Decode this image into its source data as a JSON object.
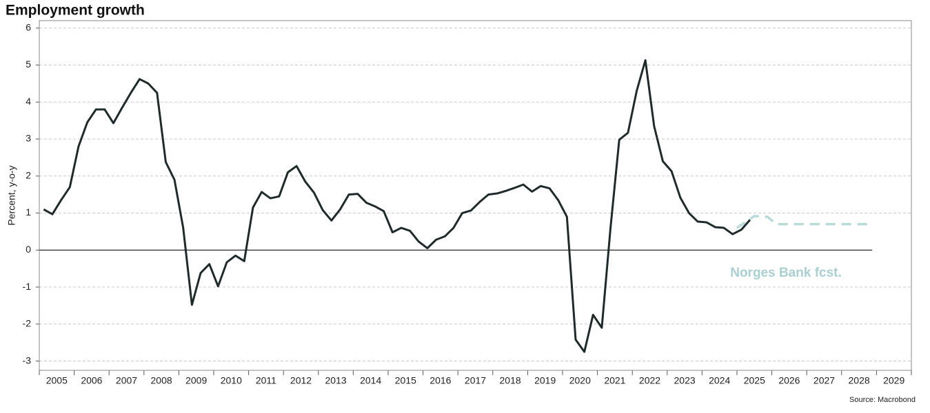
{
  "chart_data": {
    "type": "line",
    "title": "Employment growth",
    "ylabel": "Percent, y-o-y",
    "annotation": "Norges Bank fcst.",
    "source": "Source: Macrobond",
    "xlim": [
      2005,
      2030
    ],
    "xticks": [
      2005,
      2006,
      2007,
      2008,
      2009,
      2010,
      2011,
      2012,
      2013,
      2014,
      2015,
      2016,
      2017,
      2018,
      2019,
      2020,
      2021,
      2022,
      2023,
      2024,
      2025,
      2026,
      2027,
      2028,
      2029
    ],
    "ylim": [
      -3.25,
      6.2
    ],
    "yticks": [
      -3,
      -2,
      -1,
      0,
      1,
      2,
      3,
      4,
      5,
      6
    ],
    "grid": true,
    "series": [
      {
        "color": "#1f2a2a",
        "x": [
          2005.125,
          2005.375,
          2005.625,
          2005.875,
          2006.125,
          2006.375,
          2006.625,
          2006.875,
          2007.125,
          2007.375,
          2007.625,
          2007.875,
          2008.125,
          2008.375,
          2008.625,
          2008.875,
          2009.125,
          2009.375,
          2009.625,
          2009.875,
          2010.125,
          2010.375,
          2010.625,
          2010.875,
          2011.125,
          2011.375,
          2011.625,
          2011.875,
          2012.125,
          2012.375,
          2012.625,
          2012.875,
          2013.125,
          2013.375,
          2013.625,
          2013.875,
          2014.125,
          2014.375,
          2014.625,
          2014.875,
          2015.125,
          2015.375,
          2015.625,
          2015.875,
          2016.125,
          2016.375,
          2016.625,
          2016.875,
          2017.125,
          2017.375,
          2017.625,
          2017.875,
          2018.125,
          2018.375,
          2018.625,
          2018.875,
          2019.125,
          2019.375,
          2019.625,
          2019.875,
          2020.125,
          2020.375,
          2020.625,
          2020.875,
          2021.125,
          2021.375,
          2021.625,
          2021.875,
          2022.125,
          2022.375,
          2022.625,
          2022.875,
          2023.125,
          2023.375,
          2023.625,
          2023.875,
          2024.125,
          2024.375,
          2024.625,
          2024.875,
          2025.125,
          2025.375
        ],
        "values": [
          1.1,
          0.97,
          1.35,
          1.7,
          2.8,
          3.45,
          3.8,
          3.8,
          3.43,
          3.85,
          4.25,
          4.62,
          4.5,
          4.25,
          2.38,
          1.9,
          0.6,
          -1.48,
          -0.62,
          -0.38,
          -0.98,
          -0.33,
          -0.15,
          -0.3,
          1.15,
          1.57,
          1.4,
          1.45,
          2.1,
          2.27,
          1.85,
          1.55,
          1.08,
          0.8,
          1.1,
          1.5,
          1.52,
          1.28,
          1.18,
          1.05,
          0.48,
          0.6,
          0.52,
          0.23,
          0.05,
          0.28,
          0.37,
          0.6,
          1.0,
          1.07,
          1.3,
          1.5,
          1.53,
          1.6,
          1.68,
          1.77,
          1.58,
          1.73,
          1.67,
          1.35,
          0.9,
          -2.42,
          -2.75,
          -1.75,
          -2.1,
          0.6,
          2.98,
          3.17,
          4.3,
          5.13,
          3.35,
          2.4,
          2.13,
          1.42,
          1.0,
          0.77,
          0.75,
          0.62,
          0.6,
          0.43,
          0.55,
          0.82
        ]
      },
      {
        "color": "#b8dad9",
        "dashed": true,
        "x": [
          2025.0,
          2025.5,
          2025.875,
          2026.125,
          2027,
          2028,
          2028.875
        ],
        "values": [
          0.6,
          0.92,
          0.9,
          0.7,
          0.7,
          0.7,
          0.7
        ]
      }
    ]
  }
}
